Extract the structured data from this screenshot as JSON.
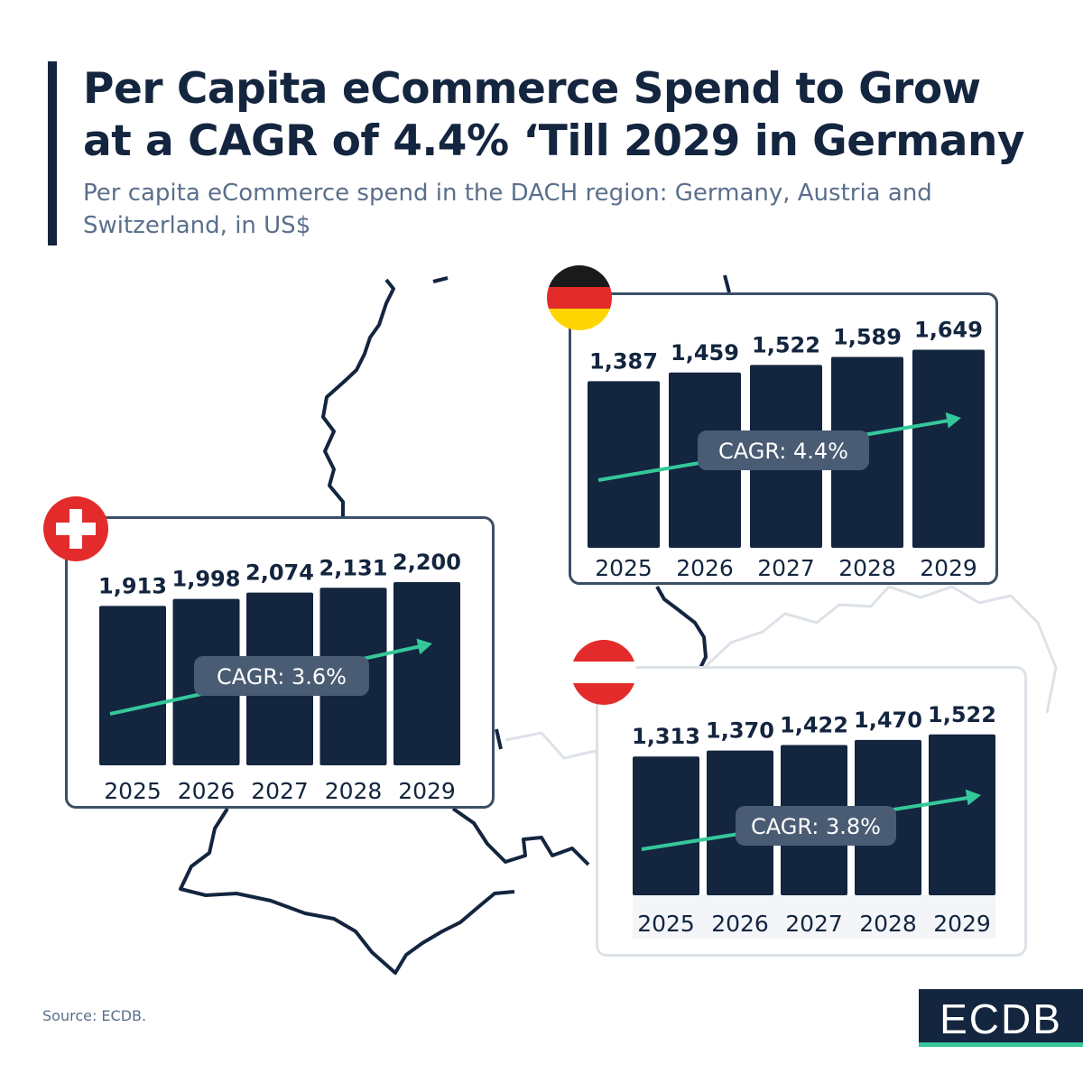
{
  "title_lines": [
    "Per Capita eCommerce Spend to Grow",
    "at a CAGR of 4.4% ‘Till 2029 in Germany"
  ],
  "subtitle_lines": [
    "Per capita eCommerce spend in the DACH region: Germany, Austria and",
    "Switzerland, in US$"
  ],
  "source": "Source: ECDB.",
  "logo": "ECDB",
  "colors": {
    "bar": "#13253f",
    "trend": "#35c79a",
    "cagr_badge": "#4a5c73",
    "map_line": "#13253f",
    "map_line_light": "#dde2e8",
    "panel_border": "#3d4f66"
  },
  "chart_data": [
    {
      "type": "bar",
      "country": "Germany",
      "flag": "germany-flag",
      "categories": [
        "2025",
        "2026",
        "2027",
        "2028",
        "2029"
      ],
      "values": [
        1387,
        1459,
        1522,
        1589,
        1649
      ],
      "value_labels": [
        "1,387",
        "1,459",
        "1,522",
        "1,589",
        "1,649"
      ],
      "annotation": "CAGR: 4.4%"
    },
    {
      "type": "bar",
      "country": "Switzerland",
      "flag": "switzerland-flag",
      "categories": [
        "2025",
        "2026",
        "2027",
        "2028",
        "2029"
      ],
      "values": [
        1913,
        1998,
        2074,
        2131,
        2200
      ],
      "value_labels": [
        "1,913",
        "1,998",
        "2,074",
        "2,131",
        "2,200"
      ],
      "annotation": "CAGR: 3.6%"
    },
    {
      "type": "bar",
      "country": "Austria",
      "flag": "austria-flag",
      "categories": [
        "2025",
        "2026",
        "2027",
        "2028",
        "2029"
      ],
      "values": [
        1313,
        1370,
        1422,
        1470,
        1522
      ],
      "value_labels": [
        "1,313",
        "1,370",
        "1,422",
        "1,470",
        "1,522"
      ],
      "annotation": "CAGR: 3.8%"
    }
  ]
}
